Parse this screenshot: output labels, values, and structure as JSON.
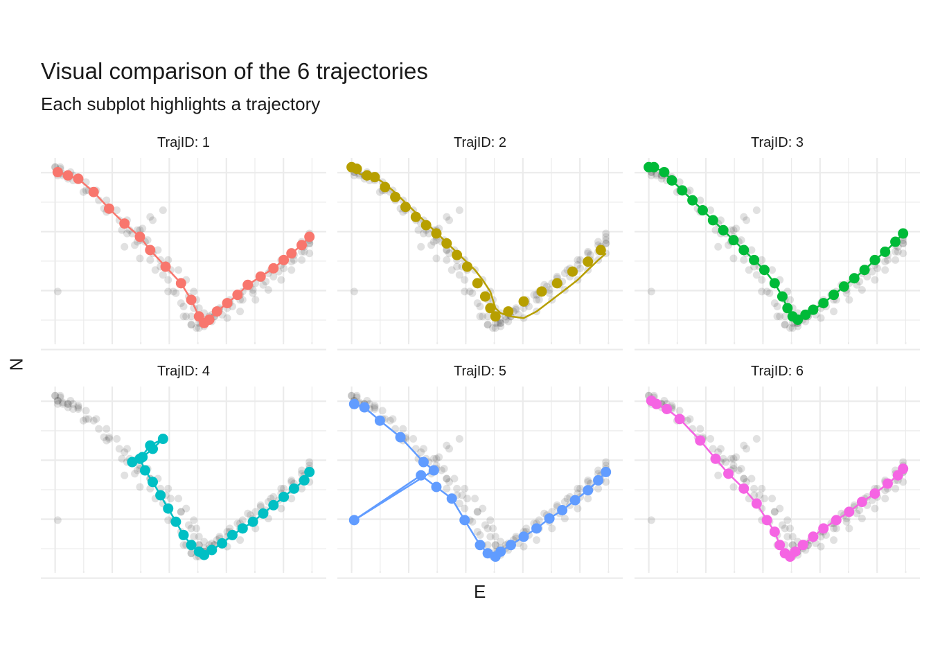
{
  "chart_data": {
    "type": "scatter",
    "title": "Visual comparison of the 6 trajectories",
    "subtitle": "Each subplot highlights a trajectory",
    "xlabel": "E",
    "ylabel": "N",
    "xlim": [
      0,
      100
    ],
    "ylim": [
      0,
      100
    ],
    "grid": true,
    "facet_label_prefix": "TrajID: ",
    "background_color": "#1a1a1a",
    "facets": [
      {
        "id": "1",
        "color": "#F8766D",
        "x": [
          1,
          5,
          9,
          15,
          21,
          27,
          33,
          37,
          43,
          49,
          53,
          56,
          58,
          60,
          63,
          67,
          71,
          75,
          80,
          85,
          89,
          92,
          96,
          99
        ],
        "y": [
          97,
          95,
          93,
          85,
          75,
          66,
          58,
          50,
          40,
          30,
          20,
          10,
          6,
          8,
          13,
          18,
          23,
          29,
          34,
          39,
          44,
          48,
          53,
          58
        ]
      },
      {
        "id": "2",
        "color": "#B79F00",
        "x": [
          0,
          2,
          3,
          5,
          7,
          9,
          12,
          16,
          20,
          24,
          28,
          32,
          36,
          40,
          44,
          48,
          51,
          54,
          55,
          56,
          58,
          62,
          67,
          72,
          78,
          83,
          88,
          92,
          96,
          99
        ],
        "y": [
          100,
          99,
          96,
          95,
          95,
          94,
          91,
          86,
          80,
          74,
          68,
          62,
          56,
          50,
          44,
          38,
          32,
          25,
          20,
          15,
          12,
          10,
          9,
          13,
          20,
          26,
          32,
          38,
          44,
          48
        ],
        "markers_x": [
          0,
          2,
          6,
          9,
          13,
          17,
          21,
          25,
          29,
          33,
          37,
          41,
          45,
          49,
          52,
          54,
          56,
          61,
          67,
          74,
          80,
          86,
          92,
          97
        ],
        "markers_y": [
          100,
          99,
          95,
          94,
          88,
          82,
          76,
          70,
          65,
          60,
          54,
          47,
          40,
          30,
          22,
          15,
          10,
          13,
          19,
          25,
          30,
          37,
          43,
          50
        ]
      },
      {
        "id": "3",
        "color": "#00BA38",
        "x": [
          0,
          2,
          6,
          9,
          13,
          17,
          21,
          25,
          29,
          33,
          37,
          41,
          45,
          49,
          52,
          54,
          56,
          58,
          61,
          64,
          68,
          72,
          76,
          80,
          84,
          88,
          92,
          96,
          99
        ],
        "y": [
          100,
          100,
          97,
          92,
          86,
          80,
          74,
          68,
          62,
          56,
          50,
          44,
          38,
          30,
          22,
          15,
          10,
          8,
          11,
          14,
          18,
          23,
          28,
          33,
          38,
          44,
          49,
          55,
          60
        ]
      },
      {
        "id": "4",
        "color": "#00BFC4",
        "x": [
          30,
          34,
          38,
          42,
          37,
          33,
          35,
          38,
          41,
          44,
          47,
          50,
          53,
          56,
          58,
          61,
          65,
          69,
          73,
          77,
          81,
          85,
          89,
          93,
          97,
          99
        ],
        "y": [
          60,
          63,
          68,
          74,
          70,
          62,
          55,
          48,
          40,
          32,
          24,
          16,
          10,
          6,
          4,
          7,
          11,
          16,
          20,
          24,
          29,
          34,
          39,
          44,
          49,
          54
        ]
      },
      {
        "id": "5",
        "color": "#619CFF",
        "x": [
          1,
          5,
          11,
          19,
          28,
          32,
          1,
          27,
          33,
          39,
          44,
          50,
          53,
          56,
          58,
          62,
          67,
          72,
          77,
          82,
          87,
          92,
          96,
          99
        ],
        "y": [
          95,
          93,
          85,
          75,
          60,
          55,
          25,
          52,
          45,
          38,
          25,
          10,
          5,
          3,
          6,
          10,
          15,
          20,
          26,
          31,
          37,
          43,
          49,
          54
        ]
      },
      {
        "id": "6",
        "color": "#F564E3",
        "x": [
          1,
          3,
          7,
          12,
          20,
          26,
          31,
          37,
          42,
          46,
          49,
          51,
          53,
          55,
          57,
          60,
          64,
          68,
          73,
          78,
          83,
          88,
          93,
          97,
          99
        ],
        "y": [
          97,
          95,
          92,
          86,
          73,
          62,
          53,
          44,
          35,
          25,
          18,
          10,
          5,
          3,
          6,
          10,
          15,
          20,
          25,
          30,
          36,
          41,
          47,
          52,
          56
        ]
      }
    ]
  }
}
